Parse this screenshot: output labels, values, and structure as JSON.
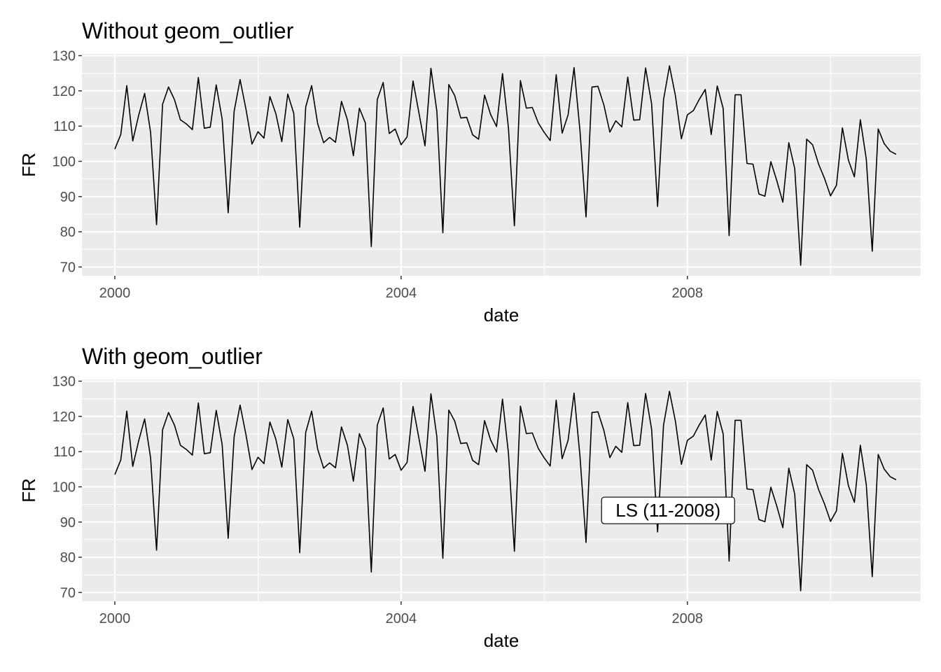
{
  "chart_data": [
    {
      "type": "line",
      "title": "Without geom_outlier",
      "xlabel": "date",
      "ylabel": "FR",
      "xlim": [
        1999.54,
        2011.26
      ],
      "ylim": [
        67.5,
        130.5
      ],
      "x_ticks": [
        {
          "value": 2000,
          "label": "2000"
        },
        {
          "value": 2004,
          "label": "2004"
        },
        {
          "value": 2008,
          "label": "2008"
        }
      ],
      "y_ticks": [
        {
          "value": 70,
          "label": "70"
        },
        {
          "value": 80,
          "label": "80"
        },
        {
          "value": 90,
          "label": "90"
        },
        {
          "value": 100,
          "label": "100"
        },
        {
          "value": 110,
          "label": "110"
        },
        {
          "value": 120,
          "label": "120"
        },
        {
          "value": 130,
          "label": "130"
        }
      ],
      "x_minor_breaks": [
        2002,
        2006,
        2010
      ],
      "y_minor_breaks": [
        75,
        85,
        95,
        105,
        115,
        125
      ],
      "series": [
        {
          "name": "FR",
          "color": "#000000",
          "x_start": 2000.0,
          "x_step": 0.0833333,
          "values": [
            103.5,
            107.6,
            121.5,
            105.8,
            113.1,
            119.3,
            108.2,
            82.0,
            116.2,
            121.1,
            117.5,
            111.8,
            110.6,
            109.0,
            123.8,
            109.4,
            109.7,
            121.7,
            112.0,
            85.4,
            114.2,
            123.2,
            114.7,
            104.9,
            108.4,
            106.6,
            118.4,
            113.5,
            105.6,
            119.1,
            113.6,
            81.3,
            115.4,
            121.5,
            110.8,
            105.3,
            106.8,
            105.4,
            117.0,
            111.8,
            101.6,
            115.1,
            110.9,
            75.8,
            117.5,
            122.4,
            107.9,
            109.2,
            104.7,
            106.9,
            122.8,
            113.7,
            104.4,
            126.4,
            114.1,
            79.7,
            121.8,
            118.6,
            112.3,
            112.5,
            107.5,
            106.3,
            118.8,
            113.3,
            109.9,
            124.9,
            109.5,
            81.7,
            122.9,
            115.1,
            115.3,
            110.9,
            108.2,
            105.9,
            124.6,
            108.0,
            113.2,
            126.6,
            108.6,
            84.2,
            121.1,
            121.3,
            116.0,
            108.3,
            111.5,
            109.8,
            123.9,
            111.7,
            111.8,
            126.5,
            116.3,
            87.2,
            117.5,
            127.1,
            118.6,
            106.4,
            113.2,
            114.4,
            117.6,
            120.4,
            107.6,
            121.4,
            115.0,
            78.9,
            118.9,
            118.9,
            99.4,
            99.2,
            90.7,
            90.1,
            99.9,
            94.5,
            88.4,
            105.3,
            97.9,
            70.5,
            106.3,
            104.7,
            99.2,
            95.1,
            90.2,
            93.2,
            109.5,
            100.3,
            95.6,
            111.8,
            100.6,
            74.5,
            109.2,
            105.0,
            102.9,
            102.0
          ]
        }
      ]
    },
    {
      "type": "line",
      "title": "With geom_outlier",
      "xlabel": "date",
      "ylabel": "FR",
      "xlim": [
        1999.54,
        2011.26
      ],
      "ylim": [
        67.5,
        130.5
      ],
      "x_ticks": [
        {
          "value": 2000,
          "label": "2000"
        },
        {
          "value": 2004,
          "label": "2004"
        },
        {
          "value": 2008,
          "label": "2008"
        }
      ],
      "y_ticks": [
        {
          "value": 70,
          "label": "70"
        },
        {
          "value": 80,
          "label": "80"
        },
        {
          "value": 90,
          "label": "90"
        },
        {
          "value": 100,
          "label": "100"
        },
        {
          "value": 110,
          "label": "110"
        },
        {
          "value": 120,
          "label": "120"
        },
        {
          "value": 130,
          "label": "130"
        }
      ],
      "x_minor_breaks": [
        2002,
        2006,
        2010
      ],
      "y_minor_breaks": [
        75,
        85,
        95,
        105,
        115,
        125
      ],
      "series": [
        {
          "name": "FR",
          "color": "#000000",
          "x_start": 2000.0,
          "x_step": 0.0833333,
          "values": [
            103.5,
            107.6,
            121.5,
            105.8,
            113.1,
            119.3,
            108.2,
            82.0,
            116.2,
            121.1,
            117.5,
            111.8,
            110.6,
            109.0,
            123.8,
            109.4,
            109.7,
            121.7,
            112.0,
            85.4,
            114.2,
            123.2,
            114.7,
            104.9,
            108.4,
            106.6,
            118.4,
            113.5,
            105.6,
            119.1,
            113.6,
            81.3,
            115.4,
            121.5,
            110.8,
            105.3,
            106.8,
            105.4,
            117.0,
            111.8,
            101.6,
            115.1,
            110.9,
            75.8,
            117.5,
            122.4,
            107.9,
            109.2,
            104.7,
            106.9,
            122.8,
            113.7,
            104.4,
            126.4,
            114.1,
            79.7,
            121.8,
            118.6,
            112.3,
            112.5,
            107.5,
            106.3,
            118.8,
            113.3,
            109.9,
            124.9,
            109.5,
            81.7,
            122.9,
            115.1,
            115.3,
            110.9,
            108.2,
            105.9,
            124.6,
            108.0,
            113.2,
            126.6,
            108.6,
            84.2,
            121.1,
            121.3,
            116.0,
            108.3,
            111.5,
            109.8,
            123.9,
            111.7,
            111.8,
            126.5,
            116.3,
            87.2,
            117.5,
            127.1,
            118.6,
            106.4,
            113.2,
            114.4,
            117.6,
            120.4,
            107.6,
            121.4,
            115.0,
            78.9,
            118.9,
            118.9,
            99.4,
            99.2,
            90.7,
            90.1,
            99.9,
            94.5,
            88.4,
            105.3,
            97.9,
            70.5,
            106.3,
            104.7,
            99.2,
            95.1,
            90.2,
            93.2,
            109.5,
            100.3,
            95.6,
            111.8,
            100.6,
            74.5,
            109.2,
            105.0,
            102.9,
            102.0
          ]
        }
      ],
      "annotations": [
        {
          "label": "LS (11-2008)",
          "x": 2007.73,
          "y": 93.3
        }
      ]
    }
  ]
}
